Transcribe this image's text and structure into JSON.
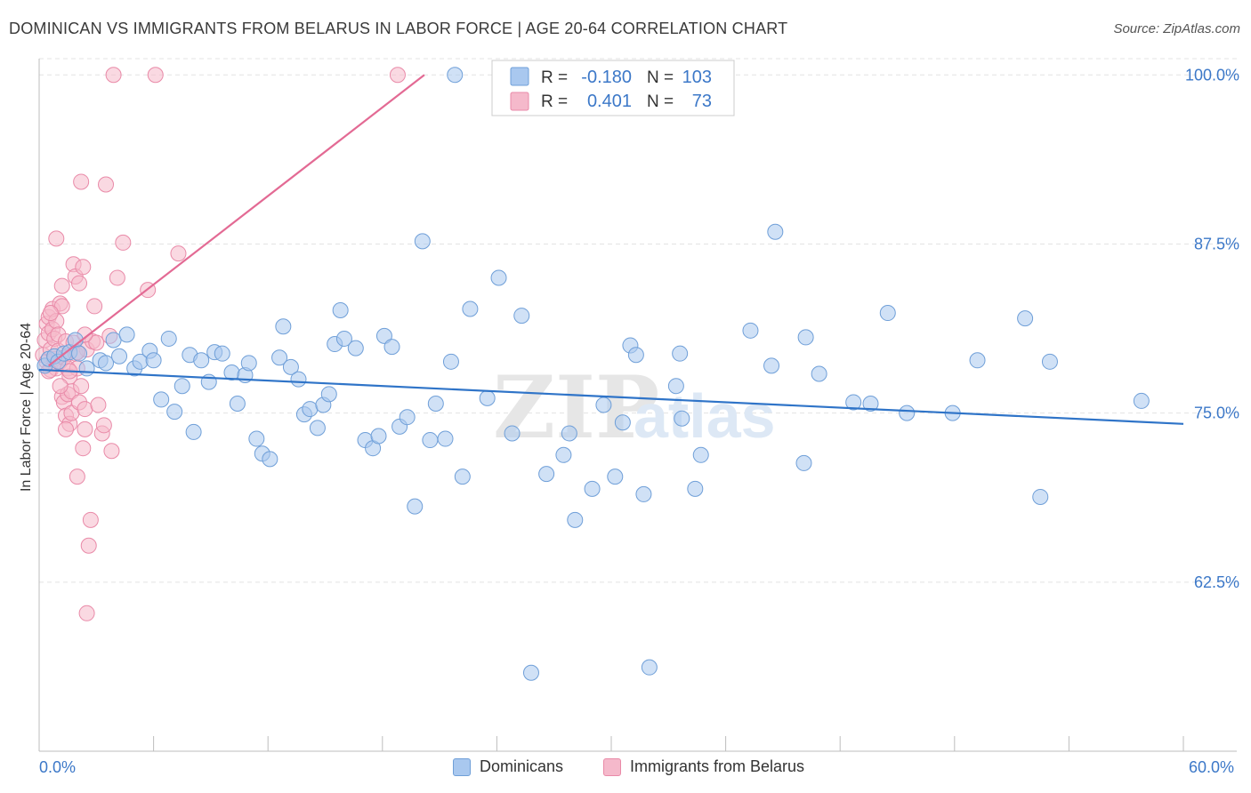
{
  "title": "DOMINICAN VS IMMIGRANTS FROM BELARUS IN LABOR FORCE | AGE 20-64 CORRELATION CHART",
  "source": "Source: ZipAtlas.com",
  "colors": {
    "blue": "#a9c8ef",
    "blue_stroke": "#6f9fd8",
    "blue_line": "#2f74c8",
    "pink": "#f5b9cb",
    "pink_stroke": "#e98aa8",
    "pink_line": "#e36a94",
    "tick_label": "#3c78c8"
  },
  "legend_box": {
    "rows": [
      {
        "r_label": "R =",
        "r_value": "-0.180",
        "n_label": "N =",
        "n_value": "103"
      },
      {
        "r_label": "R =",
        "r_value": "0.401",
        "n_label": "N =",
        "n_value": "73"
      }
    ]
  },
  "chart_data": {
    "type": "scatter",
    "title": "DOMINICAN VS IMMIGRANTS FROM BELARUS IN LABOR FORCE | AGE 20-64 CORRELATION CHART",
    "xlabel": "",
    "ylabel": "In Labor Force | Age 20-64",
    "xlim": [
      0,
      60
    ],
    "ylim": [
      50,
      101.2
    ],
    "x_tick_labels": [
      "0.0%",
      "60.0%"
    ],
    "y_ticks": [
      {
        "value": 100,
        "label": "100.0%"
      },
      {
        "value": 87.5,
        "label": "87.5%"
      },
      {
        "value": 75,
        "label": "75.0%"
      },
      {
        "value": 62.5,
        "label": "62.5%"
      }
    ],
    "grid": true,
    "legend_position": "bottom",
    "series": [
      {
        "name": "Dominicans",
        "color": "#a9c8ef",
        "trend": {
          "x": [
            0,
            60
          ],
          "y": [
            78.2,
            74.2
          ]
        },
        "points": [
          [
            0.3,
            78.5
          ],
          [
            0.5,
            79.0
          ],
          [
            0.8,
            79.2
          ],
          [
            1.0,
            78.8
          ],
          [
            1.3,
            79.4
          ],
          [
            1.6,
            79.5
          ],
          [
            1.9,
            80.4
          ],
          [
            2.1,
            79.4
          ],
          [
            2.5,
            78.3
          ],
          [
            3.2,
            78.9
          ],
          [
            3.5,
            78.7
          ],
          [
            3.9,
            80.4
          ],
          [
            4.2,
            79.2
          ],
          [
            4.6,
            80.8
          ],
          [
            5.0,
            78.3
          ],
          [
            5.3,
            78.8
          ],
          [
            5.8,
            79.6
          ],
          [
            6.0,
            78.9
          ],
          [
            6.4,
            76.0
          ],
          [
            6.8,
            80.5
          ],
          [
            7.1,
            75.1
          ],
          [
            7.5,
            77.0
          ],
          [
            7.9,
            79.3
          ],
          [
            8.1,
            73.6
          ],
          [
            8.5,
            78.9
          ],
          [
            8.9,
            77.3
          ],
          [
            9.2,
            79.5
          ],
          [
            9.6,
            79.4
          ],
          [
            10.1,
            78.0
          ],
          [
            10.4,
            75.7
          ],
          [
            10.8,
            77.8
          ],
          [
            11.0,
            78.7
          ],
          [
            11.4,
            73.1
          ],
          [
            11.7,
            72.0
          ],
          [
            12.1,
            71.6
          ],
          [
            12.6,
            79.1
          ],
          [
            12.8,
            81.4
          ],
          [
            13.2,
            78.4
          ],
          [
            13.6,
            77.5
          ],
          [
            13.9,
            74.9
          ],
          [
            14.2,
            75.3
          ],
          [
            14.6,
            73.9
          ],
          [
            14.9,
            75.6
          ],
          [
            15.2,
            76.4
          ],
          [
            15.5,
            80.1
          ],
          [
            15.8,
            82.6
          ],
          [
            16.0,
            80.5
          ],
          [
            16.6,
            79.8
          ],
          [
            17.1,
            73.0
          ],
          [
            17.5,
            72.4
          ],
          [
            17.8,
            73.3
          ],
          [
            18.1,
            80.7
          ],
          [
            18.5,
            79.9
          ],
          [
            18.9,
            74.0
          ],
          [
            19.3,
            74.7
          ],
          [
            19.7,
            68.1
          ],
          [
            20.1,
            87.7
          ],
          [
            20.5,
            73.0
          ],
          [
            20.8,
            75.7
          ],
          [
            21.3,
            73.1
          ],
          [
            21.6,
            78.8
          ],
          [
            21.8,
            100.0
          ],
          [
            22.2,
            70.3
          ],
          [
            22.6,
            82.7
          ],
          [
            23.5,
            76.1
          ],
          [
            24.1,
            85.0
          ],
          [
            24.8,
            73.5
          ],
          [
            25.3,
            82.2
          ],
          [
            25.8,
            55.8
          ],
          [
            26.6,
            70.5
          ],
          [
            27.5,
            71.9
          ],
          [
            27.8,
            73.5
          ],
          [
            28.1,
            67.1
          ],
          [
            29.0,
            69.4
          ],
          [
            29.6,
            75.6
          ],
          [
            30.2,
            70.3
          ],
          [
            30.6,
            74.3
          ],
          [
            31.0,
            80.0
          ],
          [
            31.3,
            79.3
          ],
          [
            31.7,
            69.0
          ],
          [
            32.0,
            56.2
          ],
          [
            33.4,
            77.0
          ],
          [
            33.6,
            79.4
          ],
          [
            33.7,
            74.6
          ],
          [
            34.4,
            69.4
          ],
          [
            34.7,
            71.9
          ],
          [
            37.3,
            81.1
          ],
          [
            38.4,
            78.5
          ],
          [
            38.6,
            88.4
          ],
          [
            40.1,
            71.3
          ],
          [
            40.2,
            80.6
          ],
          [
            40.9,
            77.9
          ],
          [
            42.7,
            75.8
          ],
          [
            43.6,
            75.7
          ],
          [
            44.5,
            82.4
          ],
          [
            45.5,
            75.0
          ],
          [
            47.9,
            75.0
          ],
          [
            49.2,
            78.9
          ],
          [
            51.7,
            82.0
          ],
          [
            52.5,
            68.8
          ],
          [
            53.0,
            78.8
          ],
          [
            57.8,
            75.9
          ]
        ]
      },
      {
        "name": "Immigrants from Belarus",
        "color": "#f5b9cb",
        "trend": {
          "x": [
            0.5,
            20.2
          ],
          "y": [
            78.5,
            100.0
          ]
        },
        "points": [
          [
            0.2,
            79.3
          ],
          [
            0.3,
            80.4
          ],
          [
            0.4,
            81.6
          ],
          [
            0.4,
            78.8
          ],
          [
            0.5,
            82.1
          ],
          [
            0.5,
            80.9
          ],
          [
            0.6,
            79.7
          ],
          [
            0.6,
            78.2
          ],
          [
            0.7,
            82.7
          ],
          [
            0.7,
            81.2
          ],
          [
            0.8,
            80.5
          ],
          [
            0.8,
            79.0
          ],
          [
            0.9,
            81.8
          ],
          [
            0.9,
            78.3
          ],
          [
            1.0,
            80.8
          ],
          [
            1.0,
            79.6
          ],
          [
            1.1,
            83.1
          ],
          [
            1.1,
            78.8
          ],
          [
            1.2,
            76.2
          ],
          [
            1.2,
            84.4
          ],
          [
            1.3,
            79.1
          ],
          [
            1.3,
            75.8
          ],
          [
            1.4,
            80.3
          ],
          [
            1.4,
            74.8
          ],
          [
            1.5,
            76.4
          ],
          [
            1.5,
            78.3
          ],
          [
            1.6,
            77.7
          ],
          [
            1.6,
            74.2
          ],
          [
            1.7,
            75.0
          ],
          [
            1.7,
            76.6
          ],
          [
            1.8,
            80.2
          ],
          [
            1.8,
            86.0
          ],
          [
            1.9,
            85.1
          ],
          [
            1.9,
            79.4
          ],
          [
            2.0,
            78.3
          ],
          [
            2.0,
            70.3
          ],
          [
            2.1,
            75.8
          ],
          [
            2.1,
            84.6
          ],
          [
            2.2,
            92.1
          ],
          [
            2.2,
            77.0
          ],
          [
            2.3,
            85.8
          ],
          [
            2.3,
            72.4
          ],
          [
            2.4,
            73.8
          ],
          [
            2.4,
            75.3
          ],
          [
            2.5,
            79.7
          ],
          [
            2.5,
            60.2
          ],
          [
            2.6,
            65.2
          ],
          [
            2.7,
            67.1
          ],
          [
            2.8,
            80.3
          ],
          [
            2.9,
            82.9
          ],
          [
            3.0,
            80.2
          ],
          [
            3.1,
            75.6
          ],
          [
            3.3,
            73.5
          ],
          [
            3.4,
            74.1
          ],
          [
            3.5,
            91.9
          ],
          [
            3.7,
            80.7
          ],
          [
            3.8,
            72.2
          ],
          [
            3.9,
            100.0
          ],
          [
            4.1,
            85.0
          ],
          [
            4.4,
            87.6
          ],
          [
            5.7,
            84.1
          ],
          [
            6.1,
            100.0
          ],
          [
            7.3,
            86.8
          ],
          [
            18.8,
            100.0
          ],
          [
            0.9,
            87.9
          ],
          [
            1.2,
            82.9
          ],
          [
            1.6,
            78.1
          ],
          [
            2.0,
            79.5
          ],
          [
            2.4,
            80.8
          ],
          [
            0.6,
            82.4
          ],
          [
            0.5,
            78.1
          ],
          [
            1.1,
            77.0
          ],
          [
            1.4,
            73.8
          ]
        ]
      }
    ]
  },
  "legend_bottom": {
    "items": [
      {
        "label": "Dominicans"
      },
      {
        "label": "Immigrants from Belarus"
      }
    ]
  },
  "watermark": {
    "zip": "ZIP",
    "atlas": "atlas"
  }
}
